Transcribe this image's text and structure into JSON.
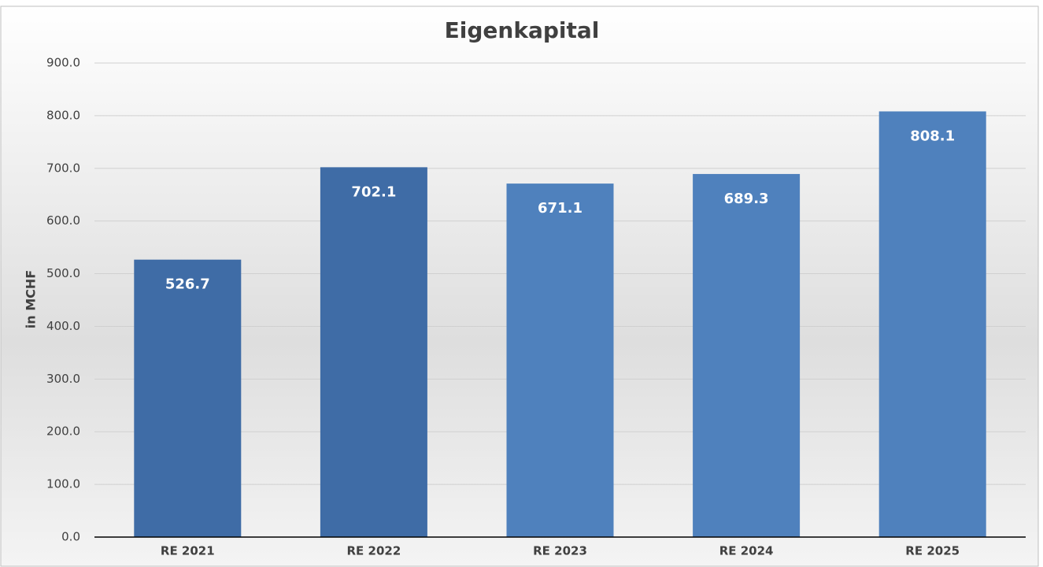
{
  "chart_data": {
    "type": "bar",
    "title": "Eigenkapital",
    "y_label": "in MCHF",
    "categories": [
      "RE 2021",
      "RE 2022",
      "RE 2023",
      "RE 2024",
      "RE 2025"
    ],
    "values": [
      526.7,
      702.1,
      671.1,
      689.3,
      808.1
    ],
    "colors": [
      "#3f6ca6",
      "#3f6ca6",
      "#4f81bd",
      "#4f81bd",
      "#4f81bd"
    ],
    "ylim": [
      0,
      900
    ],
    "yticks": [
      {
        "value": 0,
        "label": "0.0"
      },
      {
        "value": 100,
        "label": "100.0"
      },
      {
        "value": 200,
        "label": "200.0"
      },
      {
        "value": 300,
        "label": "300.0"
      },
      {
        "value": 400,
        "label": "400.0"
      },
      {
        "value": 500,
        "label": "500.0"
      },
      {
        "value": 600,
        "label": "600.0"
      },
      {
        "value": 700,
        "label": "700.0"
      },
      {
        "value": 800,
        "label": "800.0"
      },
      {
        "value": 900,
        "label": "900.0"
      }
    ],
    "grid": true
  }
}
